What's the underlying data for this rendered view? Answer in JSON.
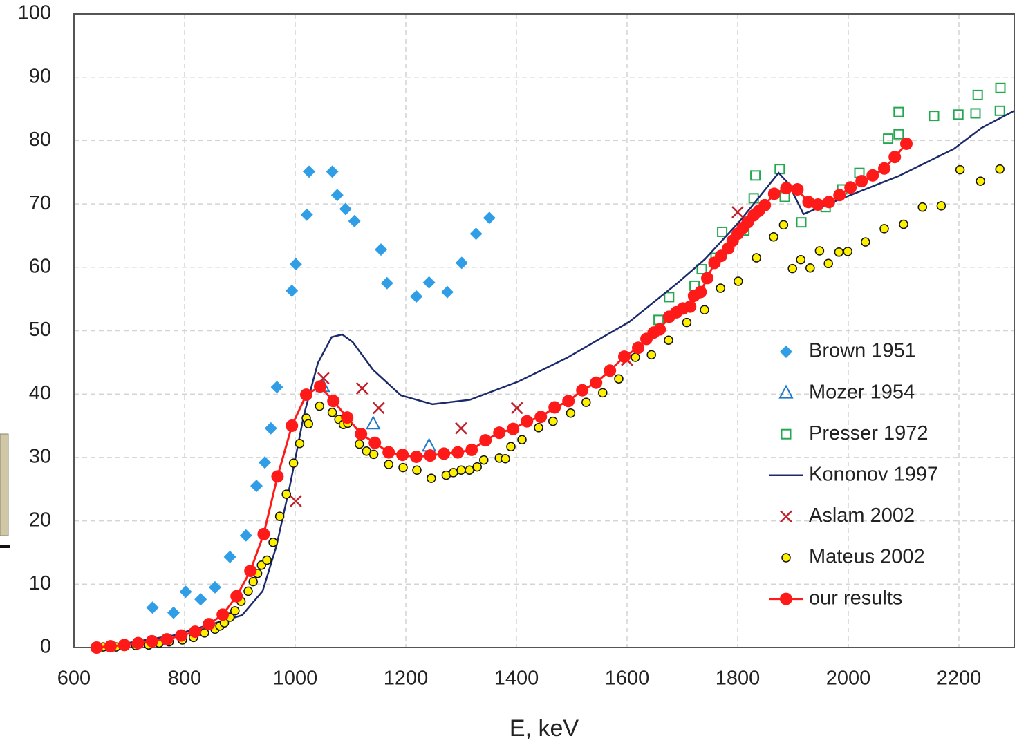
{
  "chart_data": {
    "type": "scatter",
    "x_label": "E, keV",
    "xlim": [
      600,
      2300
    ],
    "xticks": [
      600,
      800,
      1000,
      1200,
      1400,
      1600,
      1800,
      2000,
      2200
    ],
    "ylim": [
      0,
      100
    ],
    "yticks": [
      0,
      10,
      20,
      30,
      40,
      50,
      60,
      70,
      80,
      90,
      100
    ],
    "grid": true,
    "legend": "right",
    "series": [
      {
        "name": "Brown 1951",
        "color": "#2f9ee6",
        "marker": "diamond",
        "line": false,
        "x": [
          742,
          780,
          802,
          829,
          855,
          882,
          911,
          930,
          945,
          956,
          967,
          994,
          1001,
          1021,
          1025,
          1067,
          1076,
          1091,
          1107,
          1155,
          1166,
          1219,
          1242,
          1275,
          1301,
          1327,
          1351
        ],
        "values": [
          6.3,
          5.5,
          8.8,
          7.6,
          9.5,
          14.3,
          17.7,
          25.5,
          29.2,
          34.6,
          41.1,
          56.3,
          60.5,
          68.3,
          75.1,
          75.1,
          71.4,
          69.2,
          67.3,
          62.8,
          57.5,
          55.4,
          57.6,
          56.1,
          60.7,
          65.3,
          67.8
        ]
      },
      {
        "name": "Mozer 1954",
        "color": "#1f78c8",
        "marker": "triangle",
        "line": false,
        "x": [
          1050,
          1141,
          1242
        ],
        "values": [
          41.2,
          35.3,
          31.8
        ]
      },
      {
        "name": "Presser 1972",
        "color": "#22a84f",
        "marker": "square",
        "line": false,
        "x": [
          1657,
          1676,
          1722,
          1735,
          1760,
          1772,
          1812,
          1829,
          1832,
          1876,
          1885,
          1915,
          1959,
          1989,
          2020,
          2072,
          2091,
          2091,
          2155,
          2199,
          2230,
          2234,
          2274,
          2275
        ],
        "values": [
          51.7,
          55.3,
          57.1,
          59.7,
          61.5,
          65.6,
          65.8,
          70.9,
          74.5,
          75.5,
          71.1,
          67.1,
          69.5,
          72.3,
          74.9,
          80.3,
          81.0,
          84.5,
          83.9,
          84.1,
          84.3,
          87.2,
          84.7,
          88.3
        ]
      },
      {
        "name": "Kononov 1997",
        "color": "#1b2a6b",
        "marker": "none",
        "line": true,
        "x": [
          650,
          716,
          779,
          841,
          904,
          941,
          966,
          991,
          1016,
          1041,
          1066,
          1085,
          1104,
          1141,
          1191,
          1248,
          1316,
          1404,
          1491,
          1604,
          1691,
          1741,
          1804,
          1874,
          1891,
          1919,
          1941,
          2004,
          2091,
          2191,
          2241,
          2300
        ],
        "values": [
          0,
          1.0,
          1.9,
          3.5,
          5.1,
          8.9,
          16.0,
          25.8,
          36.8,
          44.9,
          49.0,
          49.4,
          48.2,
          43.8,
          39.8,
          38.4,
          39.1,
          42.0,
          45.7,
          51.4,
          57.5,
          61.3,
          67.3,
          74.9,
          73.3,
          68.4,
          69.2,
          71.4,
          74.4,
          78.7,
          82.0,
          84.7
        ]
      },
      {
        "name": "Aslam 2002",
        "color": "#c0202a",
        "marker": "cross",
        "line": false,
        "x": [
          1001,
          1051,
          1121,
          1151,
          1300,
          1401,
          1600,
          1800
        ],
        "values": [
          23.1,
          42.5,
          40.9,
          37.8,
          34.6,
          37.8,
          45.4,
          68.7
        ]
      },
      {
        "name": "Mateus 2002",
        "color": "#fff000",
        "marker": "circle-small",
        "line": false,
        "x": [
          653,
          664,
          676,
          692,
          712,
          735,
          754,
          772,
          796,
          816,
          836,
          855,
          864,
          872,
          882,
          891,
          902,
          915,
          924,
          932,
          939,
          949,
          960,
          972,
          984,
          997,
          1008,
          1020,
          1024,
          1044,
          1067,
          1079,
          1087,
          1095,
          1116,
          1129,
          1142,
          1169,
          1195,
          1220,
          1246,
          1273,
          1286,
          1300,
          1315,
          1329,
          1341,
          1369,
          1380,
          1390,
          1410,
          1440,
          1466,
          1498,
          1526,
          1556,
          1585,
          1615,
          1644,
          1675,
          1708,
          1740,
          1769,
          1801,
          1834,
          1865,
          1883,
          1899,
          1914,
          1931,
          1948,
          1964,
          1983,
          1999,
          2031,
          2065,
          2100,
          2134,
          2168,
          2202,
          2239,
          2274
        ],
        "values": [
          0.1,
          0.1,
          0.1,
          0.2,
          0.3,
          0.4,
          0.7,
          0.9,
          1.2,
          1.6,
          2.3,
          2.9,
          3.4,
          3.9,
          4.8,
          5.8,
          7.3,
          8.9,
          10.4,
          11.7,
          13.0,
          13.8,
          16.6,
          20.7,
          24.2,
          29.1,
          32.2,
          36.2,
          35.3,
          38.1,
          37.1,
          36.0,
          35.2,
          35.4,
          32.1,
          31.0,
          30.5,
          28.9,
          28.4,
          28.0,
          26.7,
          27.2,
          27.6,
          28.0,
          28.0,
          28.5,
          29.6,
          29.9,
          29.8,
          31.7,
          32.8,
          34.7,
          35.7,
          37.0,
          38.7,
          40.2,
          42.4,
          45.8,
          46.2,
          48.5,
          51.3,
          53.3,
          56.7,
          57.8,
          61.5,
          64.8,
          66.7,
          59.8,
          61.2,
          59.9,
          62.6,
          60.6,
          62.4,
          62.5,
          64.0,
          66.1,
          66.8,
          69.5,
          69.7,
          75.4,
          73.6,
          75.5
        ]
      },
      {
        "name": "our results",
        "color": "#ff1a1a",
        "marker": "circle",
        "line": true,
        "x": [
          641,
          666,
          691,
          716,
          741,
          768,
          794,
          819,
          844,
          869,
          894,
          919,
          943,
          968,
          994,
          1020,
          1045,
          1069,
          1094,
          1119,
          1144,
          1169,
          1194,
          1219,
          1244,
          1269,
          1294,
          1319,
          1344,
          1369,
          1394,
          1419,
          1444,
          1469,
          1494,
          1519,
          1544,
          1569,
          1595,
          1620,
          1635,
          1648,
          1659,
          1676,
          1689,
          1701,
          1714,
          1721,
          1733,
          1745,
          1758,
          1770,
          1783,
          1791,
          1800,
          1809,
          1818,
          1829,
          1838,
          1849,
          1866,
          1888,
          1908,
          1928,
          1945,
          1965,
          1984,
          2004,
          2024,
          2044,
          2065,
          2084,
          2105
        ],
        "values": [
          0,
          0.2,
          0.4,
          0.7,
          1.0,
          1.3,
          1.9,
          2.5,
          3.7,
          5.2,
          8.1,
          12.1,
          17.9,
          27.0,
          35.0,
          39.9,
          41.2,
          38.9,
          36.3,
          33.7,
          32.3,
          30.8,
          30.4,
          30.1,
          30.3,
          30.6,
          30.8,
          31.2,
          32.7,
          33.9,
          34.5,
          35.7,
          36.4,
          37.9,
          38.9,
          40.6,
          41.8,
          43.7,
          45.9,
          47.3,
          48.7,
          49.7,
          50.2,
          52.2,
          52.9,
          53.5,
          53.8,
          55.5,
          56.1,
          58.3,
          60.7,
          61.8,
          63.0,
          64.2,
          65.3,
          66.2,
          67.1,
          68.2,
          68.9,
          69.8,
          71.6,
          72.5,
          72.3,
          70.3,
          69.9,
          70.3,
          71.4,
          72.6,
          73.6,
          74.5,
          75.6,
          77.4,
          79.5
        ]
      }
    ]
  }
}
